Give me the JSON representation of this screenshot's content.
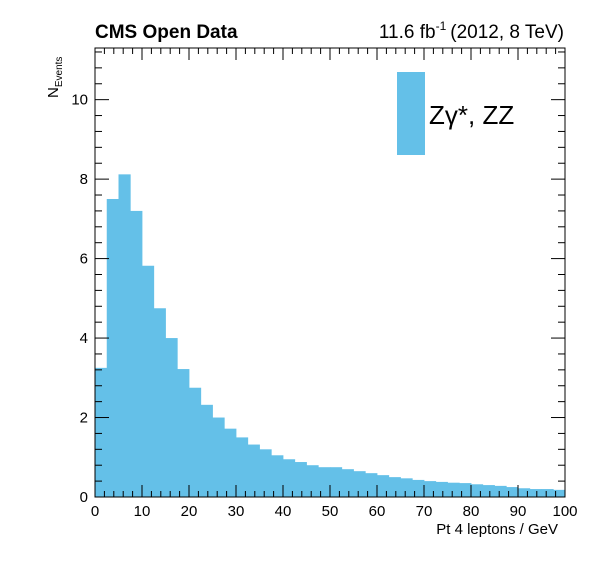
{
  "header": {
    "experiment_label": "CMS Open Data",
    "lumi_value": "11.6 fb",
    "lumi_exponent": "-1",
    "run_info": "(2012, 8 TeV)"
  },
  "chart_data": {
    "type": "bar",
    "title": "",
    "xlabel": "Pt 4 leptons / GeV",
    "ylabel_main": "N",
    "ylabel_sub": "Events",
    "xlim": [
      0,
      100
    ],
    "ylim": [
      0,
      11.3
    ],
    "bin_edges": [
      0,
      2.5,
      5,
      7.5,
      10,
      12.5,
      15,
      17.5,
      20,
      22.5,
      25,
      27.5,
      30,
      32.5,
      35,
      37.5,
      40,
      42.5,
      45,
      47.5,
      50,
      52.5,
      55,
      57.5,
      60,
      62.5,
      65,
      67.5,
      70,
      72.5,
      75,
      77.5,
      80,
      82.5,
      85,
      87.5,
      90,
      92.5,
      95,
      97.5,
      100
    ],
    "series": [
      {
        "name": "Zγ*, ZZ",
        "color": "#64c0e8",
        "values": [
          3.25,
          7.5,
          8.12,
          7.2,
          5.82,
          4.75,
          4.0,
          3.22,
          2.75,
          2.32,
          2.0,
          1.72,
          1.5,
          1.32,
          1.2,
          1.05,
          0.95,
          0.88,
          0.8,
          0.75,
          0.75,
          0.7,
          0.65,
          0.6,
          0.55,
          0.5,
          0.47,
          0.43,
          0.4,
          0.38,
          0.36,
          0.35,
          0.32,
          0.3,
          0.28,
          0.25,
          0.22,
          0.2,
          0.2,
          0.18
        ]
      }
    ],
    "x_ticks": [
      0,
      10,
      20,
      30,
      40,
      50,
      60,
      70,
      80,
      90,
      100
    ],
    "y_ticks": [
      0,
      2,
      4,
      6,
      8,
      10
    ],
    "legend": {
      "placement": "top-right",
      "label": "Zγ*, ZZ",
      "color": "#64c0e8"
    },
    "grid": false
  }
}
